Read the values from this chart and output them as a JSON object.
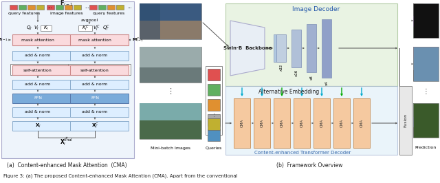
{
  "figure_width": 6.4,
  "figure_height": 2.66,
  "dpi": 100,
  "bg_color": "#ffffff",
  "caption_a": "(a)  Content-enhanced Mask Attention  (CMA)",
  "caption_b": "(b)  Framework Overview",
  "figure_caption": "Figure 3: (a) The proposed Content-enhanced Mask Attention (CMA). Apart from the conventional",
  "colors": {
    "red_sq": "#e05050",
    "green_sq": "#60b060",
    "orange_sq": "#e09030",
    "blue_sq": "#5090c0",
    "yellow_sq": "#c0b030",
    "light_pink": "#fadadd",
    "light_blue": "#ddeeff",
    "mid_blue": "#7aabda",
    "border_gray": "#888888",
    "arrow_color": "#555555",
    "cyan_arrow": "#00aacc",
    "green_arrow": "#00aa00",
    "dark_blue_arrow": "#4466aa"
  },
  "left_bg": "#eef4fb",
  "green_bg": "#e0eed8",
  "blue_bg_decoder": "#ddeef8",
  "orange_cma": "#f5c9a0"
}
